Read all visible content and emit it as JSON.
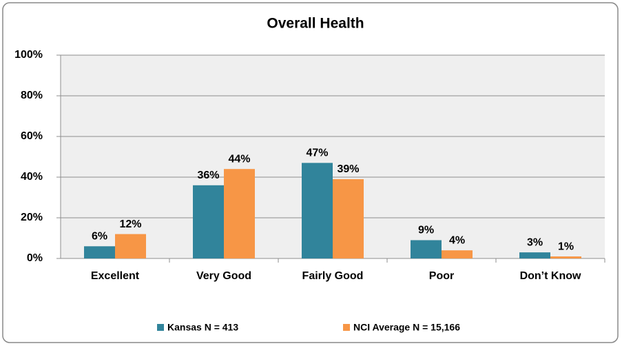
{
  "chart_data": {
    "type": "bar",
    "title": "Overall Health",
    "categories": [
      "Excellent",
      "Very Good",
      "Fairly Good",
      "Poor",
      "Don’t Know"
    ],
    "series": [
      {
        "name": "Kansas N = 413",
        "color": "#31849b",
        "values": [
          6,
          36,
          47,
          9,
          3
        ],
        "value_labels": [
          "6%",
          "36%",
          "47%",
          "9%",
          "3%"
        ]
      },
      {
        "name": "NCI Average N = 15,166",
        "color": "#f79646",
        "values": [
          12,
          44,
          39,
          4,
          1
        ],
        "value_labels": [
          "12%",
          "44%",
          "39%",
          "4%",
          "1%"
        ]
      }
    ],
    "ylim": [
      0,
      100
    ],
    "yticks": [
      {
        "value": 0,
        "label": "0%"
      },
      {
        "value": 20,
        "label": "20%"
      },
      {
        "value": 40,
        "label": "40%"
      },
      {
        "value": 60,
        "label": "60%"
      },
      {
        "value": 80,
        "label": "80%"
      },
      {
        "value": 100,
        "label": "100%"
      }
    ],
    "grid": true,
    "legend": "bottom"
  }
}
